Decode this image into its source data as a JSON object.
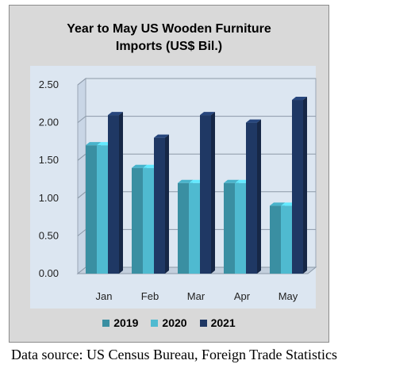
{
  "chart_data": {
    "type": "bar",
    "title_line1": "Year to May US Wooden Furniture",
    "title_line2": "Imports (US$ Bil.)",
    "categories": [
      "Jan",
      "Feb",
      "Mar",
      "Apr",
      "May"
    ],
    "series": [
      {
        "name": "2019",
        "color": "#3a8fa2",
        "values": [
          1.7,
          1.4,
          1.2,
          1.2,
          0.9
        ]
      },
      {
        "name": "2020",
        "color": "#4fbad0",
        "values": [
          1.7,
          1.4,
          1.2,
          1.2,
          0.9
        ]
      },
      {
        "name": "2021",
        "color": "#1f3864",
        "values": [
          2.1,
          1.8,
          2.1,
          2.0,
          2.3
        ]
      }
    ],
    "yticks": [
      "0.00",
      "0.50",
      "1.00",
      "1.50",
      "2.00",
      "2.50"
    ],
    "ylim": [
      0,
      2.5
    ],
    "grid": true,
    "legend_position": "bottom",
    "plot_bg": "#dce6f1",
    "frame_bg": "#d9d9d9"
  },
  "source_note": "Data source: US Census Bureau, Foreign Trade Statistics"
}
